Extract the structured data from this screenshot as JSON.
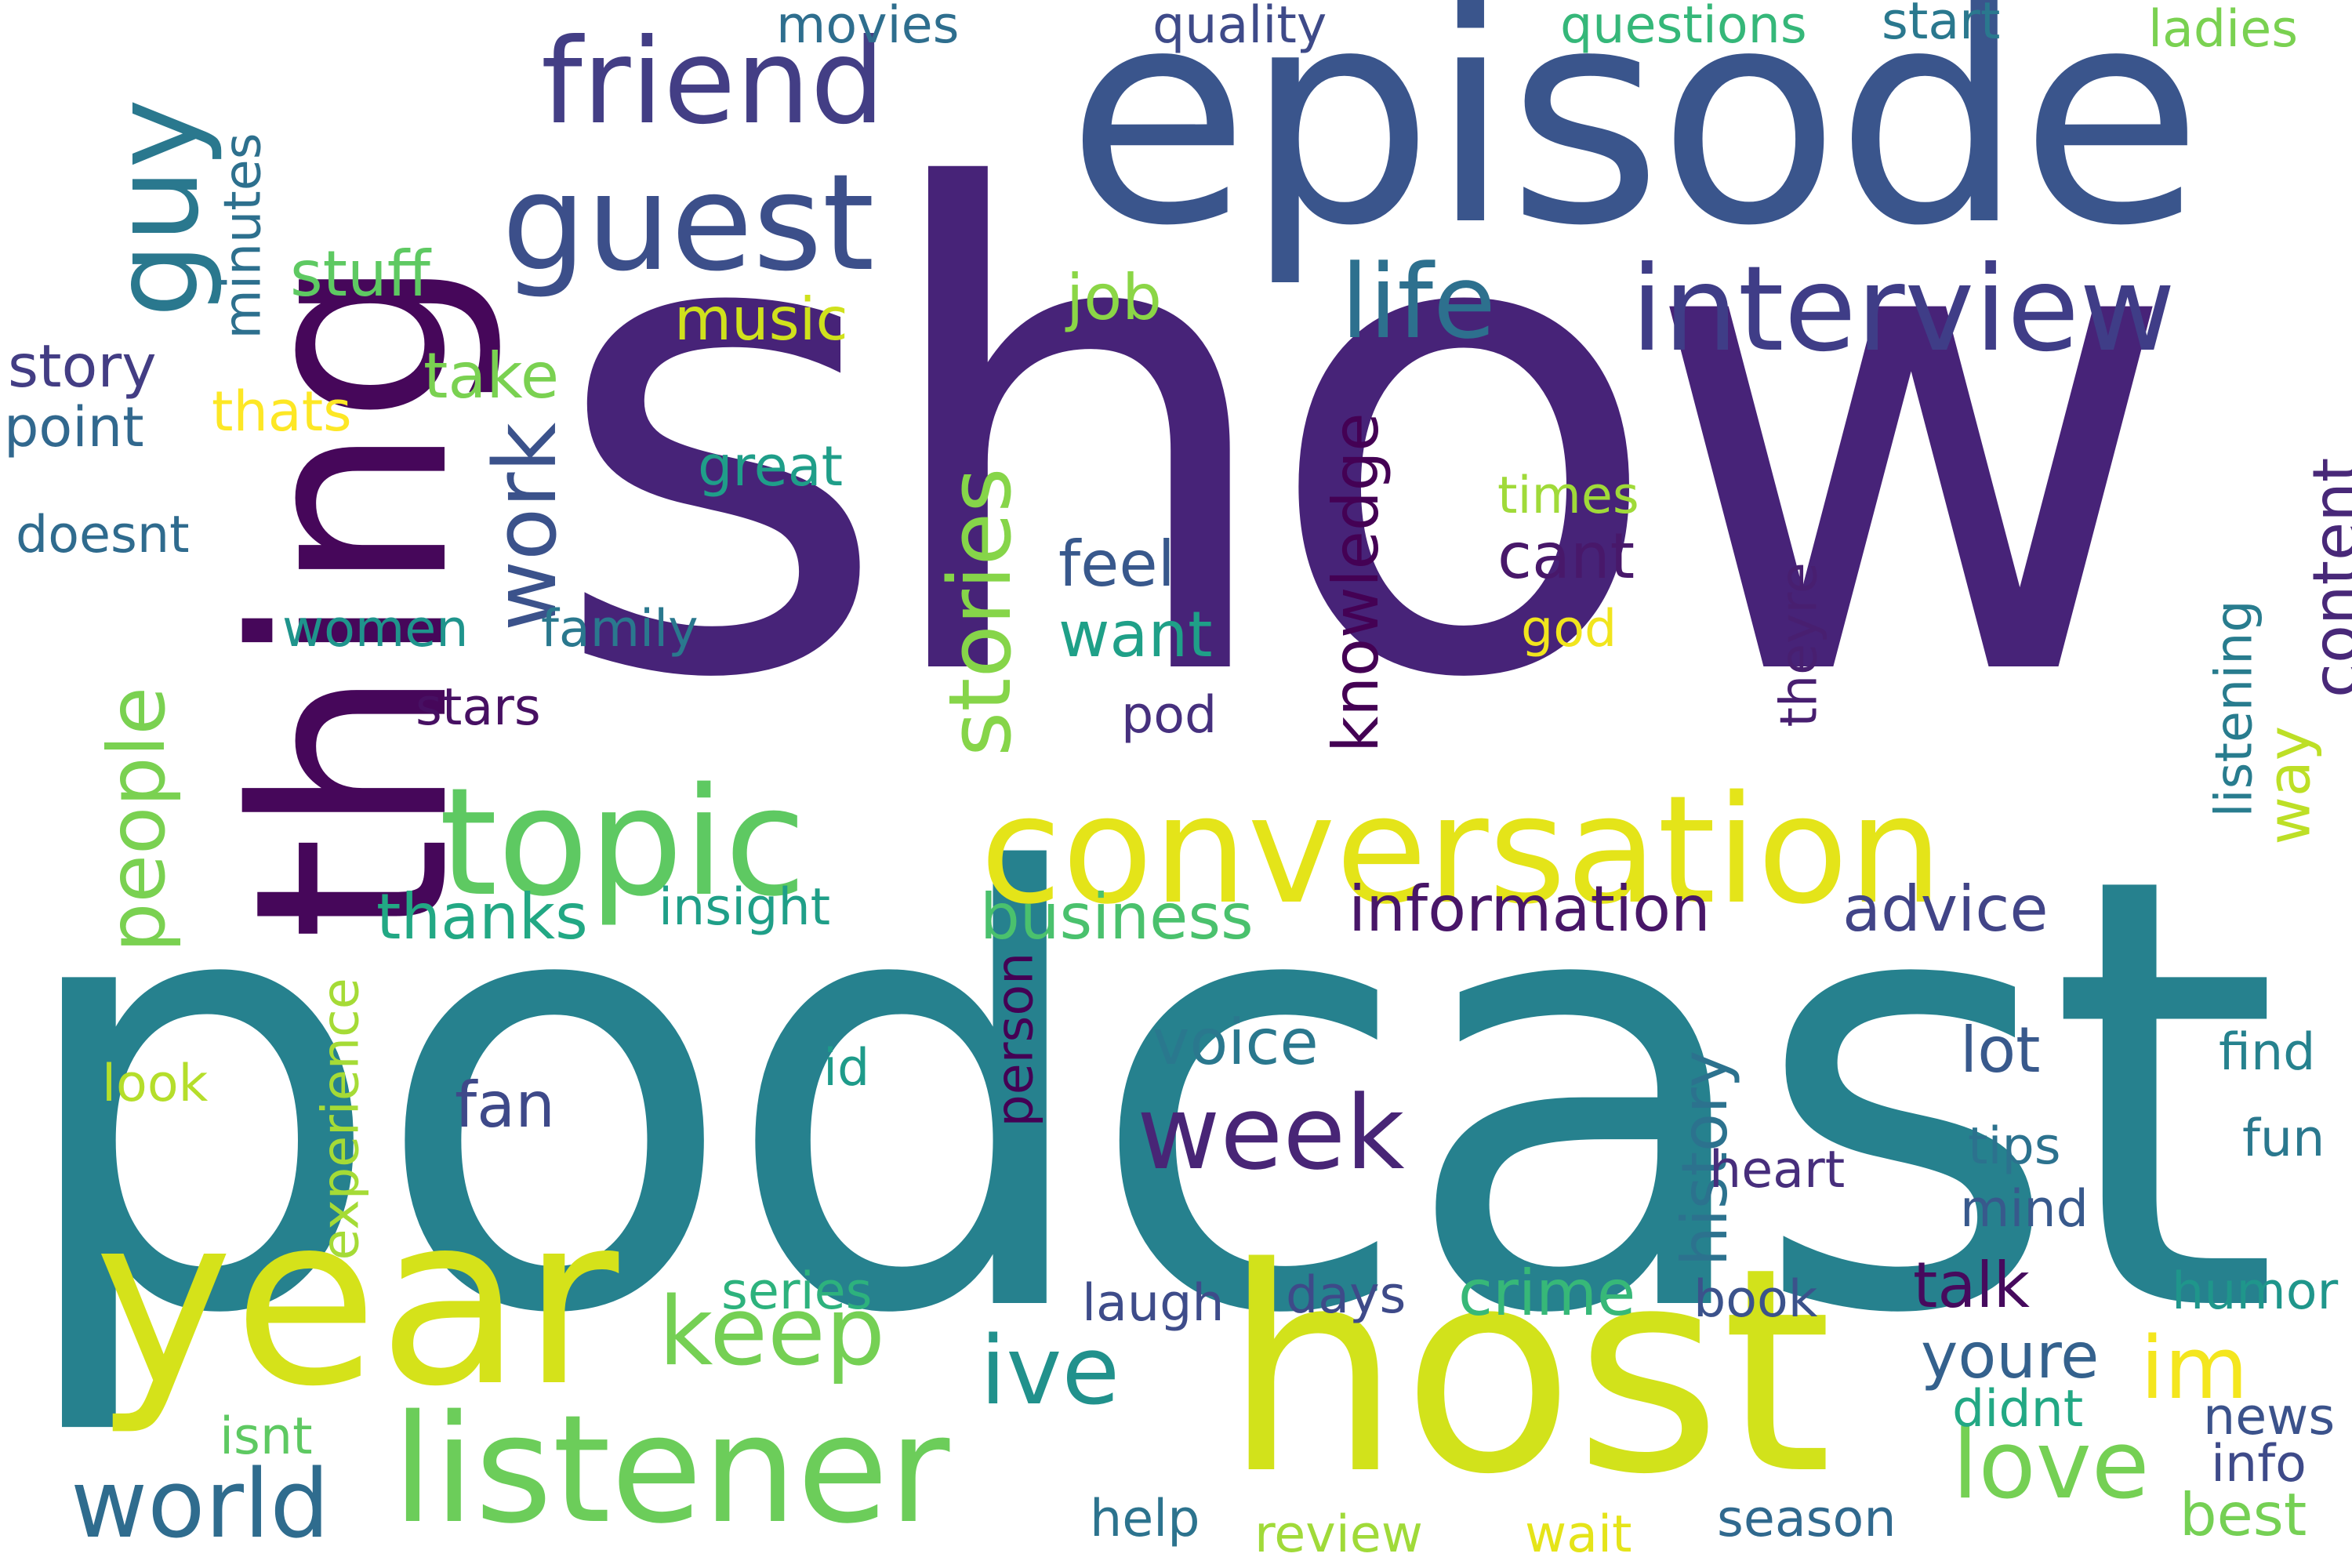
{
  "words": [
    {
      "text": "show",
      "color": "#472378"
    },
    {
      "text": "podcast",
      "color": "#26818e"
    },
    {
      "text": "episode",
      "color": "#3a558c"
    },
    {
      "text": "thing",
      "color": "#46075a"
    },
    {
      "text": "host",
      "color": "#d2e21b"
    },
    {
      "text": "year",
      "color": "#d5e21a"
    },
    {
      "text": "conversation",
      "color": "#e4e419"
    },
    {
      "text": "topic",
      "color": "#5ec962"
    },
    {
      "text": "listener",
      "color": "#6ccd5a"
    },
    {
      "text": "interview",
      "color": "#3f3d87"
    },
    {
      "text": "guest",
      "color": "#3c4f8a"
    },
    {
      "text": "friend",
      "color": "#433e85"
    },
    {
      "text": "guy",
      "color": "#2a788e"
    },
    {
      "text": "stories",
      "color": "#86d549"
    },
    {
      "text": "life",
      "color": "#2d708e"
    },
    {
      "text": "work",
      "color": "#3b528b"
    },
    {
      "text": "people",
      "color": "#7ad151"
    },
    {
      "text": "week",
      "color": "#482576"
    },
    {
      "text": "world",
      "color": "#2f6c8e"
    },
    {
      "text": "keep",
      "color": "#75d054"
    },
    {
      "text": "love",
      "color": "#75d054"
    },
    {
      "text": "ive",
      "color": "#21918c"
    },
    {
      "text": "information",
      "color": "#481668"
    },
    {
      "text": "business",
      "color": "#4ac16d"
    },
    {
      "text": "advice",
      "color": "#414487"
    },
    {
      "text": "thanks",
      "color": "#22a884"
    },
    {
      "text": "knowledge",
      "color": "#440154"
    },
    {
      "text": "content",
      "color": "#482878"
    },
    {
      "text": "history",
      "color": "#2c728e"
    },
    {
      "text": "crime",
      "color": "#37b878"
    },
    {
      "text": "talk",
      "color": "#460a5d"
    },
    {
      "text": "im",
      "color": "#f4e61e"
    },
    {
      "text": "youre",
      "color": "#34618d"
    },
    {
      "text": "lot",
      "color": "#38598c"
    },
    {
      "text": "voice",
      "color": "#2a788e"
    },
    {
      "text": "fan",
      "color": "#3e4989"
    },
    {
      "text": "feel",
      "color": "#38588c"
    },
    {
      "text": "want",
      "color": "#1fa088"
    },
    {
      "text": "cant",
      "color": "#48186a"
    },
    {
      "text": "stuff",
      "color": "#5ec962"
    },
    {
      "text": "take",
      "color": "#7ad151"
    },
    {
      "text": "job",
      "color": "#8bd646"
    },
    {
      "text": "music",
      "color": "#d0e11c"
    },
    {
      "text": "story",
      "color": "#433d84"
    },
    {
      "text": "point",
      "color": "#31688e"
    },
    {
      "text": "thats",
      "color": "#fde725"
    },
    {
      "text": "great",
      "color": "#1f9e89"
    },
    {
      "text": "doesnt",
      "color": "#2f6b8e"
    },
    {
      "text": "women",
      "color": "#1f948c"
    },
    {
      "text": "family",
      "color": "#2a788e"
    },
    {
      "text": "stars",
      "color": "#471063"
    },
    {
      "text": "pod",
      "color": "#46307e"
    },
    {
      "text": "times",
      "color": "#a0da39"
    },
    {
      "text": "god",
      "color": "#f1e51d"
    },
    {
      "text": "theyre",
      "color": "#481f70"
    },
    {
      "text": "listening",
      "color": "#287c8e"
    },
    {
      "text": "way",
      "color": "#bddf26"
    },
    {
      "text": "movies",
      "color": "#2e6e8e"
    },
    {
      "text": "quality",
      "color": "#3e4a89"
    },
    {
      "text": "questions",
      "color": "#35b779"
    },
    {
      "text": "start",
      "color": "#2a788e"
    },
    {
      "text": "ladies",
      "color": "#7ad151"
    },
    {
      "text": "minutes",
      "color": "#2d708e"
    },
    {
      "text": "insight",
      "color": "#1f9f88"
    },
    {
      "text": "experience",
      "color": "#a5db36"
    },
    {
      "text": "look",
      "color": "#b5de2b"
    },
    {
      "text": "id",
      "color": "#1e9b8a"
    },
    {
      "text": "person",
      "color": "#440154"
    },
    {
      "text": "find",
      "color": "#26828e"
    },
    {
      "text": "fun",
      "color": "#2a788e"
    },
    {
      "text": "tips",
      "color": "#2c728e"
    },
    {
      "text": "mind",
      "color": "#38598c"
    },
    {
      "text": "heart",
      "color": "#472e7c"
    },
    {
      "text": "series",
      "color": "#2db27d"
    },
    {
      "text": "laugh",
      "color": "#3e4c8a"
    },
    {
      "text": "days",
      "color": "#3e4a89"
    },
    {
      "text": "book",
      "color": "#3b528b"
    },
    {
      "text": "humor",
      "color": "#1f968b"
    },
    {
      "text": "isnt",
      "color": "#5ec962"
    },
    {
      "text": "didnt",
      "color": "#22a884"
    },
    {
      "text": "news",
      "color": "#3b528b"
    },
    {
      "text": "info",
      "color": "#3e4a89"
    },
    {
      "text": "help",
      "color": "#2c738e"
    },
    {
      "text": "review",
      "color": "#a0da39"
    },
    {
      "text": "wait",
      "color": "#e5e419"
    },
    {
      "text": "season",
      "color": "#30698e"
    },
    {
      "text": "best",
      "color": "#75d054"
    }
  ]
}
